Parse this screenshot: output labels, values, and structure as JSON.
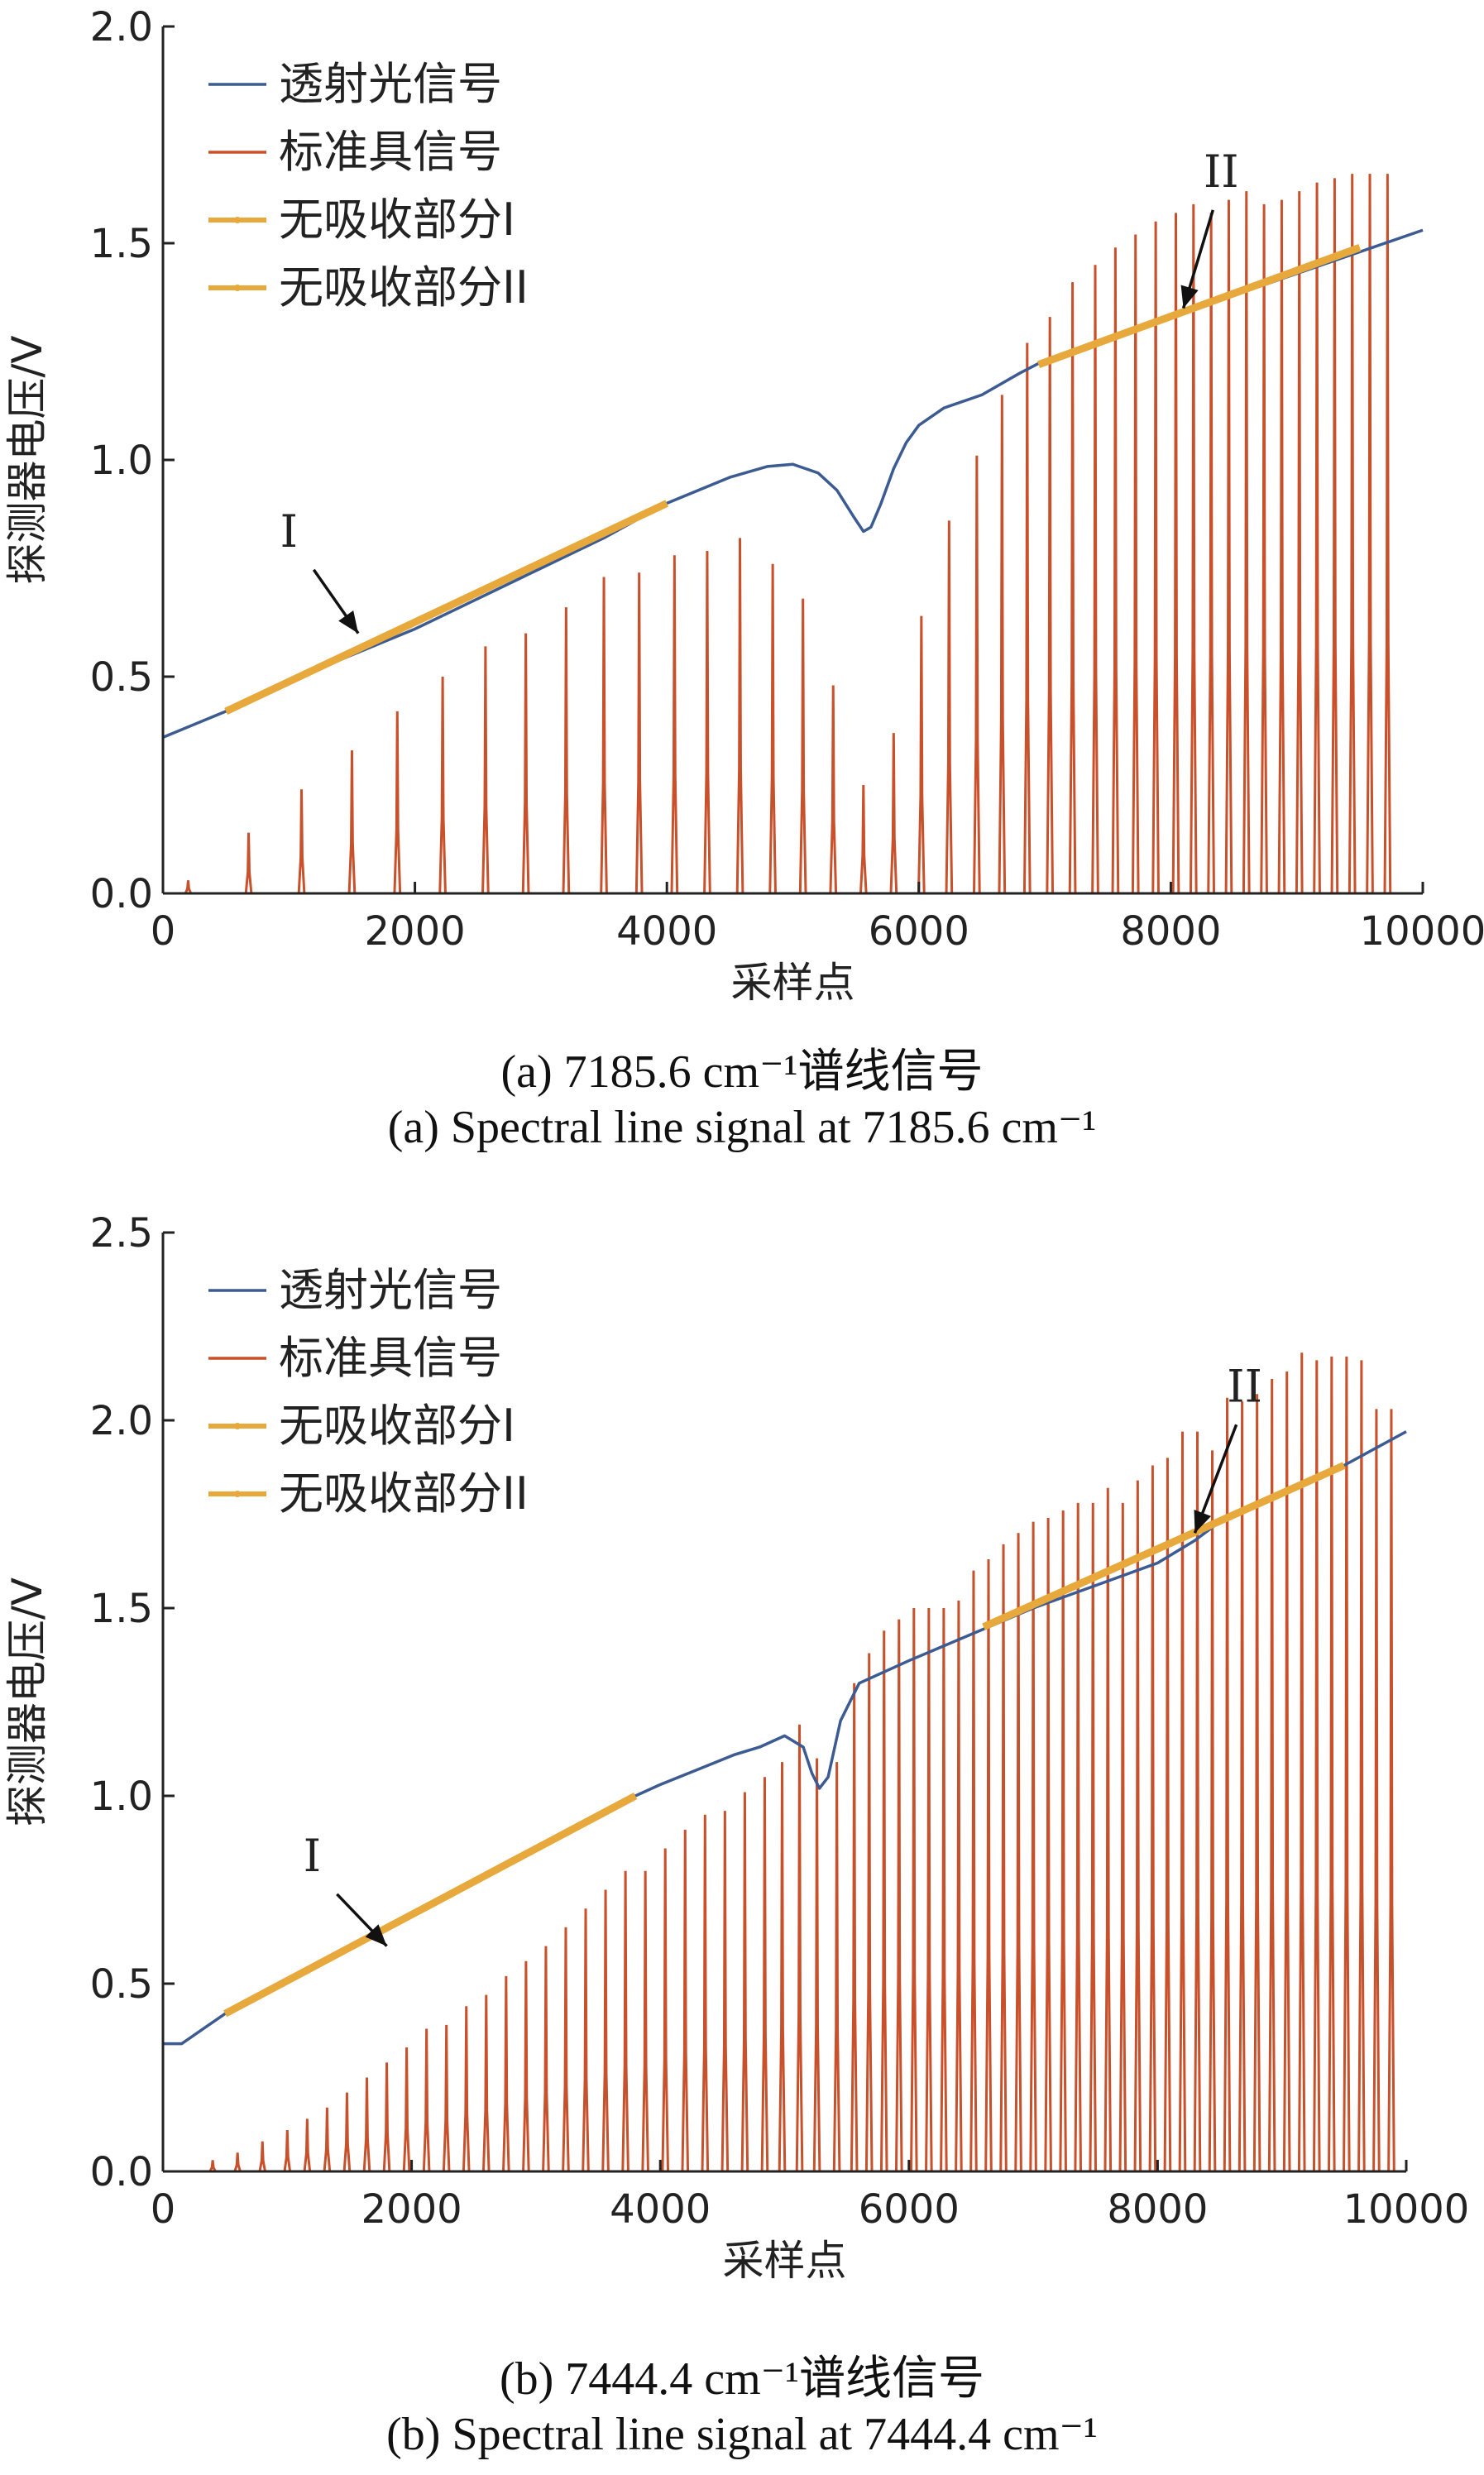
{
  "chart_data": [
    {
      "type": "line",
      "panel": "a",
      "xlabel": "采样点",
      "ylabel": "探测器电压/V",
      "xlim": [
        0,
        10000
      ],
      "ylim": [
        0,
        2.0
      ],
      "xticks": [
        0,
        2000,
        4000,
        6000,
        8000,
        10000
      ],
      "yticks": [
        0.0,
        0.5,
        1.0,
        1.5,
        2.0
      ],
      "xtick_labels": [
        "0",
        "2000",
        "4000",
        "6000",
        "8000",
        "10000"
      ],
      "ytick_labels": [
        "0.0",
        "0.5",
        "1.0",
        "1.5",
        "2.0"
      ],
      "caption_cn": "(a) 7185.6 cm⁻¹谱线信号",
      "caption_en": "(a) Spectral line signal at 7185.6 cm⁻¹",
      "legend_position": "top-left",
      "colors": {
        "transmitted": "#3b5b92",
        "etalon": "#c8502a",
        "fit": "#e8a93c"
      },
      "series": [
        {
          "name": "透射光信号",
          "x": [
            0,
            500,
            1000,
            1500,
            2000,
            2500,
            3000,
            3500,
            4000,
            4500,
            4800,
            5000,
            5200,
            5350,
            5480,
            5560,
            5620,
            5700,
            5800,
            5900,
            6000,
            6200,
            6500,
            6800,
            7000,
            7500,
            8000,
            8500,
            9000,
            9500,
            10000
          ],
          "y": [
            0.36,
            0.42,
            0.49,
            0.55,
            0.61,
            0.68,
            0.75,
            0.82,
            0.9,
            0.96,
            0.985,
            0.99,
            0.97,
            0.93,
            0.87,
            0.835,
            0.845,
            0.9,
            0.98,
            1.04,
            1.08,
            1.12,
            1.15,
            1.2,
            1.23,
            1.28,
            1.33,
            1.38,
            1.43,
            1.48,
            1.53
          ]
        },
        {
          "name": "标准具信号",
          "peak_x": [
            200,
            680,
            1100,
            1500,
            1860,
            2220,
            2560,
            2880,
            3200,
            3500,
            3780,
            4060,
            4320,
            4580,
            4840,
            5080,
            5320,
            5560,
            5800,
            6020,
            6240,
            6460,
            6660,
            6860,
            7040,
            7220,
            7400,
            7560,
            7720,
            7880,
            8040,
            8180,
            8320,
            8460,
            8600,
            8740,
            8880,
            9020,
            9160,
            9300,
            9440,
            9580,
            9720
          ],
          "peak_y": [
            0.03,
            0.14,
            0.24,
            0.33,
            0.42,
            0.5,
            0.57,
            0.6,
            0.66,
            0.73,
            0.74,
            0.78,
            0.79,
            0.82,
            0.76,
            0.68,
            0.48,
            0.25,
            0.37,
            0.64,
            0.86,
            1.01,
            1.15,
            1.27,
            1.33,
            1.41,
            1.45,
            1.49,
            1.52,
            1.55,
            1.57,
            1.59,
            1.57,
            1.6,
            1.62,
            1.59,
            1.6,
            1.62,
            1.64,
            1.65,
            1.66,
            1.66,
            1.66
          ],
          "baseline": 0.0
        },
        {
          "name": "无吸收部分I",
          "x": [
            500,
            4000
          ],
          "y": [
            0.42,
            0.9
          ]
        },
        {
          "name": "无吸收部分II",
          "x": [
            6950,
            9500
          ],
          "y": [
            1.22,
            1.49
          ]
        }
      ],
      "annotations": [
        {
          "text": "I",
          "x": 1000,
          "y": 0.8,
          "arrow_to": [
            1550,
            0.6
          ]
        },
        {
          "text": "II",
          "x": 8400,
          "y": 1.63,
          "arrow_to": [
            8100,
            1.35
          ]
        }
      ]
    },
    {
      "type": "line",
      "panel": "b",
      "xlabel": "采样点",
      "ylabel": "探测器电压/V",
      "xlim": [
        0,
        10000
      ],
      "ylim": [
        0,
        2.5
      ],
      "xticks": [
        0,
        2000,
        4000,
        6000,
        8000,
        10000
      ],
      "yticks": [
        0.0,
        0.5,
        1.0,
        1.5,
        2.0,
        2.5
      ],
      "xtick_labels": [
        "0",
        "2000",
        "4000",
        "6000",
        "8000",
        "10000"
      ],
      "ytick_labels": [
        "0.0",
        "0.5",
        "1.0",
        "1.5",
        "2.0",
        "2.5"
      ],
      "caption_cn": "(b) 7444.4 cm⁻¹谱线信号",
      "caption_en": "(b) Spectral line signal at 7444.4 cm⁻¹",
      "legend_position": "top-left",
      "colors": {
        "transmitted": "#3b5b92",
        "etalon": "#c8502a",
        "fit": "#e8a93c"
      },
      "series": [
        {
          "name": "透射光信号",
          "x": [
            0,
            150,
            500,
            1000,
            1500,
            2000,
            2500,
            3000,
            3500,
            3800,
            4000,
            4300,
            4600,
            4800,
            5000,
            5150,
            5220,
            5280,
            5350,
            5450,
            5600,
            6000,
            6500,
            7000,
            7500,
            8000,
            8300,
            8500,
            9000,
            9500,
            10000
          ],
          "y": [
            0.34,
            0.34,
            0.42,
            0.51,
            0.6,
            0.68,
            0.77,
            0.86,
            0.95,
            1.0,
            1.03,
            1.07,
            1.11,
            1.13,
            1.16,
            1.13,
            1.06,
            1.02,
            1.05,
            1.2,
            1.3,
            1.36,
            1.43,
            1.5,
            1.56,
            1.62,
            1.68,
            1.73,
            1.8,
            1.88,
            1.97
          ]
        },
        {
          "name": "标准具信号",
          "peak_x": [
            400,
            600,
            800,
            1000,
            1160,
            1320,
            1480,
            1640,
            1800,
            1960,
            2120,
            2280,
            2440,
            2600,
            2760,
            2920,
            3080,
            3240,
            3400,
            3560,
            3720,
            3880,
            4040,
            4200,
            4360,
            4520,
            4680,
            4840,
            4980,
            5120,
            5260,
            5420,
            5560,
            5680,
            5800,
            5920,
            6040,
            6160,
            6280,
            6400,
            6520,
            6640,
            6760,
            6880,
            7000,
            7120,
            7240,
            7360,
            7480,
            7600,
            7720,
            7840,
            7960,
            8080,
            8200,
            8320,
            8440,
            8560,
            8680,
            8800,
            8920,
            9040,
            9160,
            9280,
            9400,
            9520,
            9640,
            9760,
            9880
          ],
          "peak_y": [
            0.03,
            0.05,
            0.08,
            0.11,
            0.14,
            0.17,
            0.21,
            0.25,
            0.29,
            0.33,
            0.38,
            0.39,
            0.44,
            0.47,
            0.52,
            0.56,
            0.6,
            0.65,
            0.7,
            0.75,
            0.8,
            0.8,
            0.86,
            0.91,
            0.95,
            0.96,
            1.01,
            1.05,
            1.09,
            1.19,
            1.1,
            1.09,
            1.3,
            1.38,
            1.44,
            1.47,
            1.5,
            1.5,
            1.5,
            1.52,
            1.6,
            1.63,
            1.67,
            1.7,
            1.73,
            1.74,
            1.76,
            1.78,
            1.78,
            1.82,
            1.78,
            1.84,
            1.88,
            1.9,
            1.97,
            1.97,
            1.92,
            2.06,
            2.05,
            2.07,
            2.11,
            2.13,
            2.18,
            2.16,
            2.17,
            2.17,
            2.16,
            2.03,
            2.03
          ],
          "baseline": 0.0
        },
        {
          "name": "无吸收部分I",
          "x": [
            500,
            3800
          ],
          "y": [
            0.42,
            1.0
          ]
        },
        {
          "name": "无吸收部分II",
          "x": [
            6600,
            9500
          ],
          "y": [
            1.45,
            1.88
          ]
        }
      ],
      "annotations": [
        {
          "text": "I",
          "x": 1200,
          "y": 0.8,
          "arrow_to": [
            1800,
            0.6
          ]
        },
        {
          "text": "II",
          "x": 8700,
          "y": 2.05,
          "arrow_to": [
            8300,
            1.7
          ]
        }
      ]
    }
  ]
}
